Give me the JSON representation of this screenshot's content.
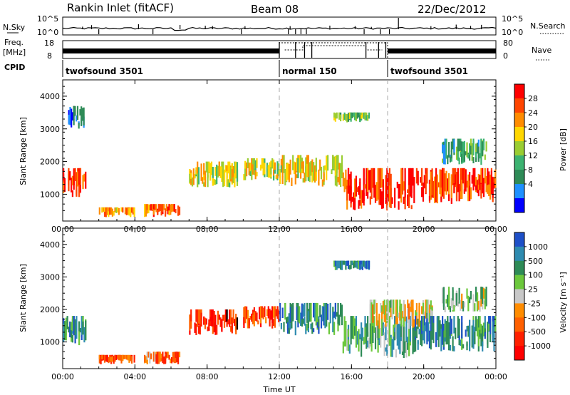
{
  "header": {
    "station": "Rankin Inlet (fitACF)",
    "beam": "Beam 08",
    "date": "22/Dec/2012"
  },
  "summary_panels": {
    "nsky_label": "N.Sky",
    "nsky_ticks": [
      "10^5",
      "10^0"
    ],
    "nsearch_label": "N.Search",
    "nsearch_ticks": [
      "10^5",
      "10^0"
    ],
    "freq_label_line1": "Freq.",
    "freq_label_line2": "[MHz]",
    "freq_ticks": [
      "18",
      "8"
    ],
    "nave_label": "Nave",
    "nave_ticks": [
      "80",
      "0"
    ],
    "cpid_label": "CPID",
    "cpid_segments": [
      {
        "name": "twofsound 3501",
        "start_hour": 0,
        "end_hour": 12
      },
      {
        "name": "normal 150",
        "start_hour": 12,
        "end_hour": 18
      },
      {
        "name": "twofsound 3501",
        "start_hour": 18,
        "end_hour": 24
      }
    ]
  },
  "chart_data": [
    {
      "type": "heatmap",
      "panel": "power",
      "ylabel": "Slant Range [km]",
      "xlim": [
        0,
        24
      ],
      "ylim": [
        180,
        4500
      ],
      "x_tick_labels": [
        "00:00",
        "04:00",
        "08:00",
        "12:00",
        "16:00",
        "20:00",
        "00:00"
      ],
      "y_tick_labels": [
        "1000",
        "2000",
        "3000",
        "4000"
      ],
      "colorbar_label": "Power [dB]",
      "colorbar_ticks": [
        "28",
        "24",
        "20",
        "16",
        "12",
        "8",
        "4"
      ],
      "colorbar_colors": [
        "#ff0000",
        "#ff4500",
        "#ff8c00",
        "#ffd700",
        "#9acd32",
        "#3cb371",
        "#2e8b57",
        "#1e90ff",
        "#0000ff"
      ],
      "echo_regions": [
        {
          "t0": 0.0,
          "t1": 1.3,
          "r0": 900,
          "r1": 1800,
          "level": 0.9
        },
        {
          "t0": 2.0,
          "t1": 4.0,
          "r0": 300,
          "r1": 600,
          "level": 0.7
        },
        {
          "t0": 4.5,
          "t1": 6.5,
          "r0": 300,
          "r1": 700,
          "level": 0.8
        },
        {
          "t0": 7.0,
          "t1": 9.7,
          "r0": 1200,
          "r1": 2000,
          "level": 0.6
        },
        {
          "t0": 10.0,
          "t1": 12.0,
          "r0": 1400,
          "r1": 2100,
          "level": 0.55
        },
        {
          "t0": 12.0,
          "t1": 15.5,
          "r0": 1200,
          "r1": 2200,
          "level": 0.6
        },
        {
          "t0": 15.5,
          "t1": 19.5,
          "r0": 500,
          "r1": 1800,
          "level": 0.9
        },
        {
          "t0": 19.5,
          "t1": 24.0,
          "r0": 700,
          "r1": 1800,
          "level": 0.85
        },
        {
          "t0": 0.3,
          "t1": 1.2,
          "r0": 3000,
          "r1": 3700,
          "level": 0.15
        },
        {
          "t0": 15.0,
          "t1": 17.0,
          "r0": 3200,
          "r1": 3500,
          "level": 0.45
        },
        {
          "t0": 21.0,
          "t1": 23.5,
          "r0": 1900,
          "r1": 2700,
          "level": 0.35
        }
      ]
    },
    {
      "type": "heatmap",
      "panel": "velocity",
      "ylabel": "Slant Range [km]",
      "xlabel": "Time UT",
      "xlim": [
        0,
        24
      ],
      "ylim": [
        180,
        4500
      ],
      "x_tick_labels": [
        "00:00",
        "04:00",
        "08:00",
        "12:00",
        "16:00",
        "20:00",
        "00:00"
      ],
      "y_tick_labels": [
        "1000",
        "2000",
        "3000",
        "4000"
      ],
      "colorbar_label": "Velocity [m s⁻¹]",
      "colorbar_ticks": [
        "1000",
        "500",
        "100",
        "25",
        "-25",
        "-100",
        "-500",
        "-1000"
      ],
      "colorbar_colors": [
        "#1e50c8",
        "#2e8bb0",
        "#2e8b57",
        "#6cc83c",
        "#c8c8c8",
        "#ff8c00",
        "#ff6000",
        "#ff2000",
        "#ff0000"
      ],
      "echo_regions": [
        {
          "t0": 0.0,
          "t1": 1.3,
          "r0": 900,
          "r1": 1800,
          "level": 0.75
        },
        {
          "t0": 2.0,
          "t1": 4.0,
          "r0": 300,
          "r1": 600,
          "level": 0.25
        },
        {
          "t0": 4.5,
          "t1": 6.5,
          "r0": 300,
          "r1": 700,
          "level": 0.3
        },
        {
          "t0": 7.0,
          "t1": 9.7,
          "r0": 1200,
          "r1": 2000,
          "level": 0.15
        },
        {
          "t0": 10.0,
          "t1": 12.0,
          "r0": 1400,
          "r1": 2100,
          "level": 0.25
        },
        {
          "t0": 12.0,
          "t1": 15.5,
          "r0": 1200,
          "r1": 2200,
          "level": 0.8
        },
        {
          "t0": 15.5,
          "t1": 19.5,
          "r0": 500,
          "r1": 1800,
          "level": 0.7
        },
        {
          "t0": 17.0,
          "t1": 20.5,
          "r0": 1400,
          "r1": 2300,
          "level": 0.5
        },
        {
          "t0": 19.5,
          "t1": 24.0,
          "r0": 700,
          "r1": 1800,
          "level": 0.8
        },
        {
          "t0": 15.0,
          "t1": 17.0,
          "r0": 3200,
          "r1": 3500,
          "level": 0.8
        },
        {
          "t0": 21.0,
          "t1": 23.5,
          "r0": 1900,
          "r1": 2700,
          "level": 0.6
        }
      ]
    }
  ]
}
